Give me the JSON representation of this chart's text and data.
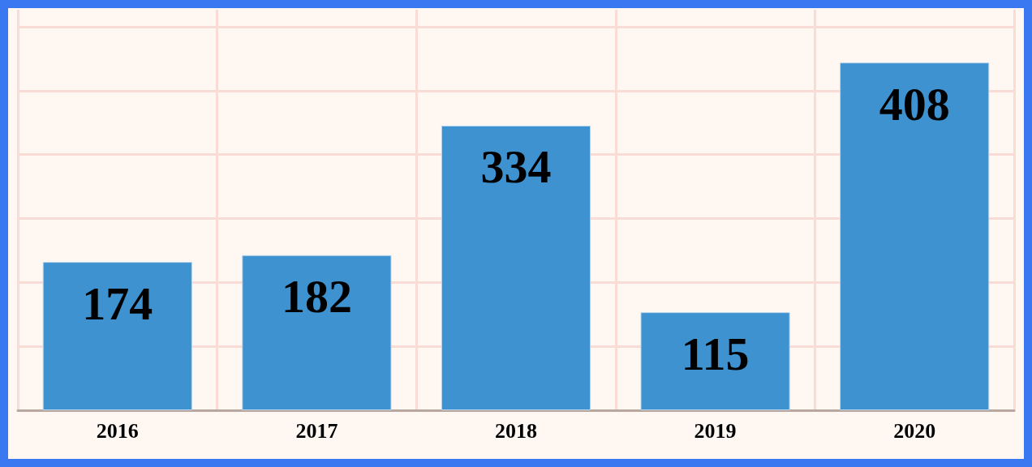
{
  "chart_data": {
    "type": "bar",
    "categories": [
      "2016",
      "2017",
      "2018",
      "2019",
      "2020"
    ],
    "values": [
      174,
      182,
      334,
      115,
      408
    ],
    "color": "#3d92cf",
    "ylim": [
      0,
      470
    ],
    "yticks": [
      {
        "value": 0,
        "label": null
      },
      {
        "value": 75,
        "label": null
      },
      {
        "value": 150,
        "label": null
      },
      {
        "value": 225,
        "label": null
      },
      {
        "value": 300,
        "label": null
      },
      {
        "value": 375,
        "label": null
      },
      {
        "value": 450,
        "label": null
      }
    ],
    "tick_labels": "x",
    "grid": true,
    "data_labels": true
  }
}
